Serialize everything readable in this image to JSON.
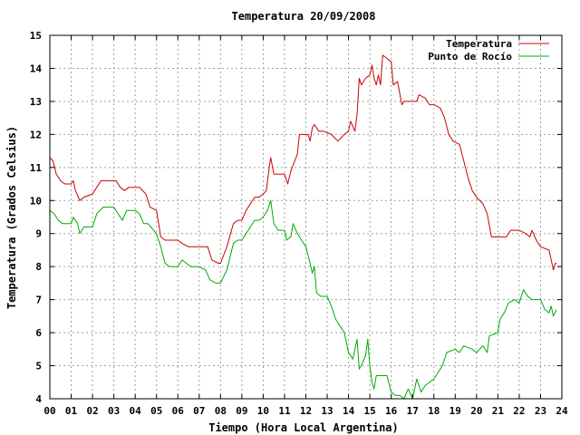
{
  "chart_data": {
    "type": "line",
    "title": "Temperatura 20/09/2008",
    "xlabel": "Tiempo (Hora Local Argentina)",
    "ylabel": "Temperatura (Grados Celsius)",
    "xlim": [
      0,
      24
    ],
    "ylim": [
      4,
      15
    ],
    "x_ticks": [
      "00",
      "01",
      "02",
      "03",
      "04",
      "05",
      "06",
      "07",
      "08",
      "09",
      "10",
      "11",
      "12",
      "13",
      "14",
      "15",
      "16",
      "17",
      "18",
      "19",
      "20",
      "21",
      "22",
      "23",
      "24"
    ],
    "y_ticks": [
      "4",
      "5",
      "6",
      "7",
      "8",
      "9",
      "10",
      "11",
      "12",
      "13",
      "14",
      "15"
    ],
    "grid": true,
    "legend_position": "top-right",
    "series": [
      {
        "name": "Temperatura",
        "color": "#cc0000",
        "points": [
          [
            0.0,
            11.3
          ],
          [
            0.15,
            11.2
          ],
          [
            0.3,
            10.8
          ],
          [
            0.5,
            10.6
          ],
          [
            0.7,
            10.5
          ],
          [
            1.0,
            10.5
          ],
          [
            1.1,
            10.6
          ],
          [
            1.2,
            10.3
          ],
          [
            1.4,
            10.0
          ],
          [
            1.6,
            10.1
          ],
          [
            2.0,
            10.2
          ],
          [
            2.2,
            10.4
          ],
          [
            2.4,
            10.6
          ],
          [
            2.8,
            10.6
          ],
          [
            3.1,
            10.6
          ],
          [
            3.3,
            10.4
          ],
          [
            3.5,
            10.3
          ],
          [
            3.7,
            10.4
          ],
          [
            4.2,
            10.4
          ],
          [
            4.5,
            10.2
          ],
          [
            4.7,
            9.8
          ],
          [
            5.0,
            9.7
          ],
          [
            5.1,
            9.3
          ],
          [
            5.2,
            8.9
          ],
          [
            5.4,
            8.8
          ],
          [
            6.0,
            8.8
          ],
          [
            6.2,
            8.7
          ],
          [
            6.5,
            8.6
          ],
          [
            7.0,
            8.6
          ],
          [
            7.4,
            8.6
          ],
          [
            7.6,
            8.2
          ],
          [
            7.9,
            8.1
          ],
          [
            8.0,
            8.1
          ],
          [
            8.3,
            8.6
          ],
          [
            8.6,
            9.3
          ],
          [
            8.8,
            9.4
          ],
          [
            9.0,
            9.4
          ],
          [
            9.2,
            9.7
          ],
          [
            9.4,
            9.9
          ],
          [
            9.6,
            10.1
          ],
          [
            9.8,
            10.1
          ],
          [
            10.0,
            10.2
          ],
          [
            10.15,
            10.3
          ],
          [
            10.3,
            11.1
          ],
          [
            10.35,
            11.3
          ],
          [
            10.5,
            10.8
          ],
          [
            11.0,
            10.8
          ],
          [
            11.15,
            10.5
          ],
          [
            11.3,
            10.9
          ],
          [
            11.6,
            11.4
          ],
          [
            11.7,
            12.0
          ],
          [
            12.1,
            12.0
          ],
          [
            12.2,
            11.8
          ],
          [
            12.3,
            12.2
          ],
          [
            12.4,
            12.3
          ],
          [
            12.6,
            12.1
          ],
          [
            12.8,
            12.1
          ],
          [
            13.2,
            12.0
          ],
          [
            13.5,
            11.8
          ],
          [
            13.8,
            12.0
          ],
          [
            14.0,
            12.1
          ],
          [
            14.1,
            12.4
          ],
          [
            14.3,
            12.1
          ],
          [
            14.4,
            12.6
          ],
          [
            14.5,
            13.7
          ],
          [
            14.6,
            13.5
          ],
          [
            14.8,
            13.7
          ],
          [
            15.0,
            13.8
          ],
          [
            15.1,
            14.1
          ],
          [
            15.2,
            13.7
          ],
          [
            15.3,
            13.5
          ],
          [
            15.4,
            13.8
          ],
          [
            15.5,
            13.5
          ],
          [
            15.6,
            14.4
          ],
          [
            15.8,
            14.3
          ],
          [
            16.0,
            14.2
          ],
          [
            16.1,
            13.5
          ],
          [
            16.3,
            13.6
          ],
          [
            16.5,
            12.9
          ],
          [
            16.6,
            13.0
          ],
          [
            16.8,
            13.0
          ],
          [
            17.0,
            13.0
          ],
          [
            17.2,
            13.0
          ],
          [
            17.3,
            13.2
          ],
          [
            17.6,
            13.1
          ],
          [
            17.8,
            12.9
          ],
          [
            18.0,
            12.9
          ],
          [
            18.3,
            12.8
          ],
          [
            18.5,
            12.5
          ],
          [
            18.7,
            12.0
          ],
          [
            18.9,
            11.8
          ],
          [
            19.2,
            11.7
          ],
          [
            19.4,
            11.2
          ],
          [
            19.6,
            10.7
          ],
          [
            19.8,
            10.3
          ],
          [
            20.0,
            10.1
          ],
          [
            20.3,
            9.9
          ],
          [
            20.5,
            9.6
          ],
          [
            20.7,
            8.9
          ],
          [
            21.0,
            8.9
          ],
          [
            21.2,
            8.9
          ],
          [
            21.4,
            8.9
          ],
          [
            21.6,
            9.1
          ],
          [
            22.0,
            9.1
          ],
          [
            22.3,
            9.0
          ],
          [
            22.5,
            8.9
          ],
          [
            22.6,
            9.1
          ],
          [
            22.8,
            8.8
          ],
          [
            23.0,
            8.6
          ],
          [
            23.4,
            8.5
          ],
          [
            23.5,
            8.2
          ],
          [
            23.6,
            7.9
          ],
          [
            23.7,
            8.1
          ],
          [
            23.75,
            8.1
          ]
        ]
      },
      {
        "name": "Punto de Rocío",
        "color": "#00aa00",
        "points": [
          [
            0.0,
            9.7
          ],
          [
            0.2,
            9.6
          ],
          [
            0.4,
            9.4
          ],
          [
            0.6,
            9.3
          ],
          [
            1.0,
            9.3
          ],
          [
            1.1,
            9.5
          ],
          [
            1.3,
            9.3
          ],
          [
            1.4,
            9.0
          ],
          [
            1.6,
            9.2
          ],
          [
            2.0,
            9.2
          ],
          [
            2.2,
            9.6
          ],
          [
            2.5,
            9.8
          ],
          [
            3.0,
            9.8
          ],
          [
            3.2,
            9.6
          ],
          [
            3.4,
            9.4
          ],
          [
            3.6,
            9.7
          ],
          [
            4.0,
            9.7
          ],
          [
            4.2,
            9.6
          ],
          [
            4.4,
            9.3
          ],
          [
            4.6,
            9.3
          ],
          [
            5.0,
            9.0
          ],
          [
            5.2,
            8.6
          ],
          [
            5.4,
            8.1
          ],
          [
            5.6,
            8.0
          ],
          [
            6.0,
            8.0
          ],
          [
            6.2,
            8.2
          ],
          [
            6.4,
            8.1
          ],
          [
            6.6,
            8.0
          ],
          [
            7.0,
            8.0
          ],
          [
            7.3,
            7.9
          ],
          [
            7.5,
            7.6
          ],
          [
            7.8,
            7.5
          ],
          [
            8.0,
            7.5
          ],
          [
            8.3,
            7.9
          ],
          [
            8.6,
            8.7
          ],
          [
            8.8,
            8.8
          ],
          [
            9.0,
            8.8
          ],
          [
            9.2,
            9.0
          ],
          [
            9.4,
            9.2
          ],
          [
            9.6,
            9.4
          ],
          [
            9.8,
            9.4
          ],
          [
            10.0,
            9.5
          ],
          [
            10.2,
            9.7
          ],
          [
            10.35,
            10.0
          ],
          [
            10.5,
            9.3
          ],
          [
            10.7,
            9.1
          ],
          [
            11.0,
            9.1
          ],
          [
            11.1,
            8.8
          ],
          [
            11.3,
            8.9
          ],
          [
            11.4,
            9.3
          ],
          [
            11.6,
            9.0
          ],
          [
            11.8,
            8.8
          ],
          [
            12.0,
            8.6
          ],
          [
            12.2,
            8.1
          ],
          [
            12.3,
            7.8
          ],
          [
            12.4,
            8.0
          ],
          [
            12.5,
            7.2
          ],
          [
            12.7,
            7.1
          ],
          [
            13.0,
            7.1
          ],
          [
            13.2,
            6.8
          ],
          [
            13.4,
            6.4
          ],
          [
            13.6,
            6.2
          ],
          [
            13.8,
            6.0
          ],
          [
            14.0,
            5.4
          ],
          [
            14.2,
            5.2
          ],
          [
            14.4,
            5.8
          ],
          [
            14.5,
            4.9
          ],
          [
            14.6,
            5.0
          ],
          [
            14.8,
            5.3
          ],
          [
            14.9,
            5.8
          ],
          [
            15.0,
            5.0
          ],
          [
            15.1,
            4.5
          ],
          [
            15.2,
            4.3
          ],
          [
            15.3,
            4.7
          ],
          [
            15.6,
            4.7
          ],
          [
            15.8,
            4.7
          ],
          [
            16.0,
            4.2
          ],
          [
            16.2,
            4.1
          ],
          [
            16.4,
            4.1
          ],
          [
            16.6,
            4.0
          ],
          [
            16.8,
            4.3
          ],
          [
            17.0,
            4.0
          ],
          [
            17.2,
            4.6
          ],
          [
            17.4,
            4.2
          ],
          [
            17.6,
            4.4
          ],
          [
            18.0,
            4.6
          ],
          [
            18.4,
            5.0
          ],
          [
            18.6,
            5.4
          ],
          [
            19.0,
            5.5
          ],
          [
            19.2,
            5.4
          ],
          [
            19.4,
            5.6
          ],
          [
            19.8,
            5.5
          ],
          [
            20.0,
            5.4
          ],
          [
            20.3,
            5.6
          ],
          [
            20.5,
            5.4
          ],
          [
            20.6,
            5.9
          ],
          [
            21.0,
            6.0
          ],
          [
            21.1,
            6.4
          ],
          [
            21.3,
            6.6
          ],
          [
            21.5,
            6.9
          ],
          [
            21.8,
            7.0
          ],
          [
            22.0,
            6.9
          ],
          [
            22.2,
            7.3
          ],
          [
            22.4,
            7.1
          ],
          [
            22.6,
            7.0
          ],
          [
            23.0,
            7.0
          ],
          [
            23.2,
            6.7
          ],
          [
            23.4,
            6.6
          ],
          [
            23.5,
            6.8
          ],
          [
            23.6,
            6.5
          ],
          [
            23.75,
            6.7
          ]
        ]
      }
    ]
  }
}
